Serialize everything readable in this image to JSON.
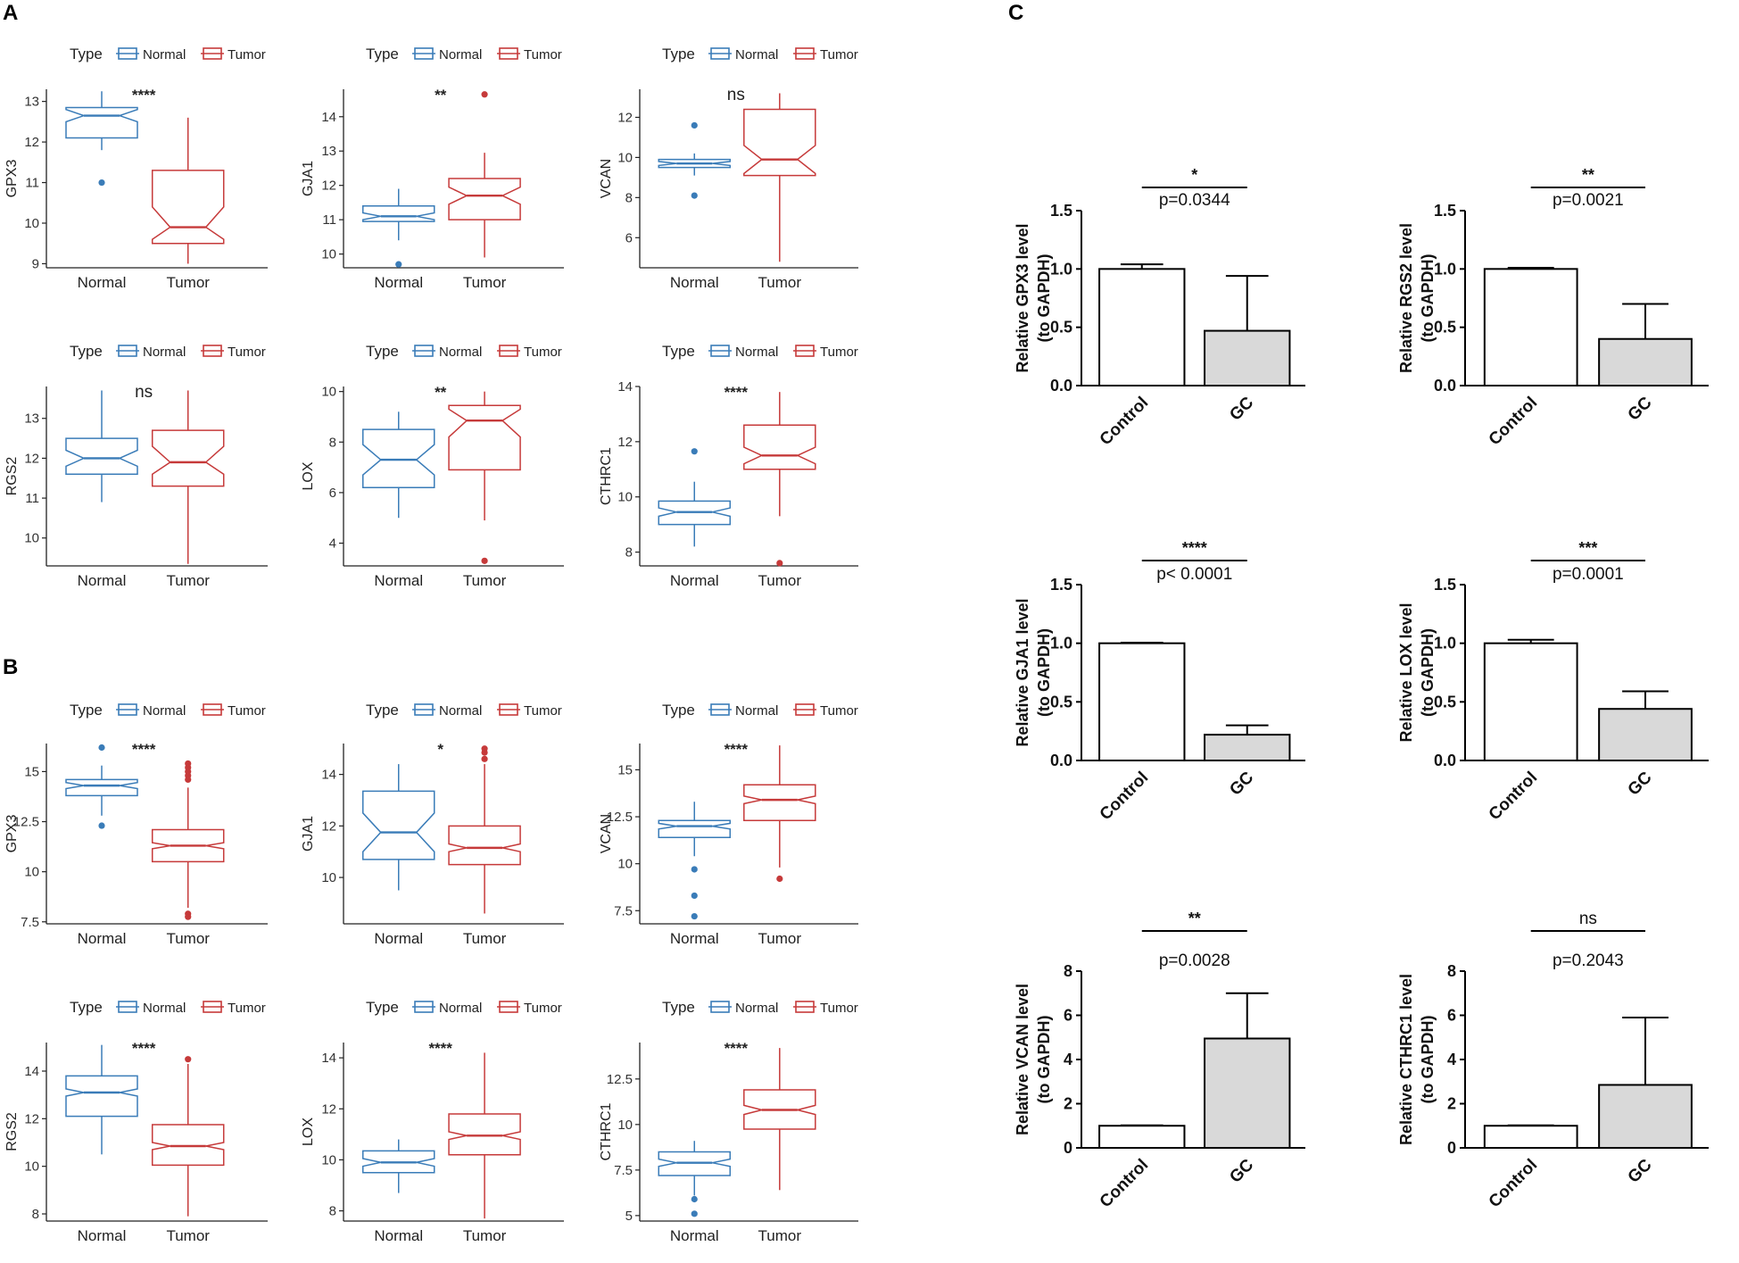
{
  "panel_labels": {
    "A": "A",
    "B": "B",
    "C": "C"
  },
  "legend": {
    "title": "Type",
    "normal": "Normal",
    "tumor": "Tumor"
  },
  "colors": {
    "normal": "#3a7cb8",
    "tumor": "#c63a3a",
    "gc_bar": "#d9d9d9",
    "axis": "#222222"
  },
  "chart_data": [
    {
      "panel": "A",
      "type": "boxplot",
      "gene": "GPX3",
      "ylabel": "GPX3",
      "ylim": [
        8.9,
        13.3
      ],
      "yticks": [
        9,
        10,
        11,
        12,
        13
      ],
      "categories": [
        "Normal",
        "Tumor"
      ],
      "significance": "****",
      "boxes": [
        {
          "group": "Normal",
          "min": 11.8,
          "q1": 12.1,
          "median": 12.65,
          "q3": 12.85,
          "max": 13.25,
          "outliers": [
            11.0
          ],
          "notch": [
            12.5,
            12.8
          ]
        },
        {
          "group": "Tumor",
          "min": 9.0,
          "q1": 9.5,
          "median": 9.9,
          "q3": 11.3,
          "max": 12.6,
          "outliers": [],
          "notch": [
            9.6,
            10.4
          ]
        }
      ]
    },
    {
      "panel": "A",
      "type": "boxplot",
      "gene": "GJA1",
      "ylabel": "GJA1",
      "ylim": [
        9.6,
        14.8
      ],
      "yticks": [
        10,
        11,
        12,
        13,
        14
      ],
      "categories": [
        "Normal",
        "Tumor"
      ],
      "significance": "**",
      "boxes": [
        {
          "group": "Normal",
          "min": 10.4,
          "q1": 10.95,
          "median": 11.1,
          "q3": 11.4,
          "max": 11.9,
          "outliers": [
            9.7
          ],
          "notch": [
            11.0,
            11.2
          ]
        },
        {
          "group": "Tumor",
          "min": 9.9,
          "q1": 11.0,
          "median": 11.7,
          "q3": 12.2,
          "max": 12.95,
          "outliers": [
            14.65
          ],
          "notch": [
            11.45,
            11.95
          ]
        }
      ]
    },
    {
      "panel": "A",
      "type": "boxplot",
      "gene": "VCAN",
      "ylabel": "VCAN",
      "ylim": [
        4.5,
        13.4
      ],
      "yticks": [
        6,
        8,
        10,
        12
      ],
      "categories": [
        "Normal",
        "Tumor"
      ],
      "significance": "ns",
      "boxes": [
        {
          "group": "Normal",
          "min": 9.1,
          "q1": 9.5,
          "median": 9.7,
          "q3": 9.9,
          "max": 10.2,
          "outliers": [
            11.6,
            8.1
          ],
          "notch": [
            9.6,
            9.8
          ]
        },
        {
          "group": "Tumor",
          "min": 4.8,
          "q1": 9.1,
          "median": 9.9,
          "q3": 12.4,
          "max": 13.2,
          "outliers": [],
          "notch": [
            9.2,
            10.6
          ]
        }
      ]
    },
    {
      "panel": "A",
      "type": "boxplot",
      "gene": "RGS2",
      "ylabel": "RGS2",
      "ylim": [
        9.3,
        13.8
      ],
      "yticks": [
        10,
        11,
        12,
        13
      ],
      "categories": [
        "Normal",
        "Tumor"
      ],
      "significance": "ns",
      "boxes": [
        {
          "group": "Normal",
          "min": 10.9,
          "q1": 11.6,
          "median": 12.0,
          "q3": 12.5,
          "max": 13.7,
          "outliers": [],
          "notch": [
            11.8,
            12.2
          ]
        },
        {
          "group": "Tumor",
          "min": 9.35,
          "q1": 11.3,
          "median": 11.9,
          "q3": 12.7,
          "max": 13.7,
          "outliers": [],
          "notch": [
            11.6,
            12.3
          ]
        }
      ]
    },
    {
      "panel": "A",
      "type": "boxplot",
      "gene": "LOX",
      "ylabel": "LOX",
      "ylim": [
        3.1,
        10.2
      ],
      "yticks": [
        4,
        6,
        8,
        10
      ],
      "categories": [
        "Normal",
        "Tumor"
      ],
      "significance": "**",
      "boxes": [
        {
          "group": "Normal",
          "min": 5.0,
          "q1": 6.2,
          "median": 7.3,
          "q3": 8.5,
          "max": 9.2,
          "outliers": [],
          "notch": [
            6.7,
            7.9
          ]
        },
        {
          "group": "Tumor",
          "min": 4.9,
          "q1": 6.9,
          "median": 8.85,
          "q3": 9.45,
          "max": 10.0,
          "outliers": [
            3.3
          ],
          "notch": [
            8.2,
            9.3
          ]
        }
      ]
    },
    {
      "panel": "A",
      "type": "boxplot",
      "gene": "CTHRC1",
      "ylabel": "CTHRC1",
      "ylim": [
        7.5,
        14.0
      ],
      "yticks": [
        8,
        10,
        12,
        14
      ],
      "categories": [
        "Normal",
        "Tumor"
      ],
      "significance": "****",
      "boxes": [
        {
          "group": "Normal",
          "min": 8.2,
          "q1": 9.0,
          "median": 9.45,
          "q3": 9.85,
          "max": 10.55,
          "outliers": [
            11.65
          ],
          "notch": [
            9.3,
            9.6
          ]
        },
        {
          "group": "Tumor",
          "min": 9.3,
          "q1": 11.0,
          "median": 11.5,
          "q3": 12.6,
          "max": 13.8,
          "outliers": [
            7.6
          ],
          "notch": [
            11.2,
            11.8
          ]
        }
      ]
    },
    {
      "panel": "B",
      "type": "boxplot",
      "gene": "GPX3",
      "ylabel": "GPX3",
      "ylim": [
        7.4,
        16.4
      ],
      "yticks": [
        7.5,
        10.0,
        12.5,
        15.0
      ],
      "categories": [
        "Normal",
        "Tumor"
      ],
      "significance": "****",
      "boxes": [
        {
          "group": "Normal",
          "min": 12.8,
          "q1": 13.8,
          "median": 14.3,
          "q3": 14.6,
          "max": 15.3,
          "outliers": [
            16.2,
            12.3
          ],
          "notch": [
            14.15,
            14.45
          ]
        },
        {
          "group": "Tumor",
          "min": 8.2,
          "q1": 10.5,
          "median": 11.3,
          "q3": 12.1,
          "max": 14.2,
          "outliers": [
            14.6,
            14.8,
            15.0,
            15.2,
            15.4,
            7.9,
            7.75
          ],
          "notch": [
            11.15,
            11.45
          ]
        }
      ]
    },
    {
      "panel": "B",
      "type": "boxplot",
      "gene": "GJA1",
      "ylabel": "GJA1",
      "ylim": [
        8.2,
        15.2
      ],
      "yticks": [
        10,
        12,
        14
      ],
      "categories": [
        "Normal",
        "Tumor"
      ],
      "significance": "*",
      "boxes": [
        {
          "group": "Normal",
          "min": 9.5,
          "q1": 10.7,
          "median": 11.75,
          "q3": 13.35,
          "max": 14.4,
          "outliers": [],
          "notch": [
            11.0,
            12.5
          ]
        },
        {
          "group": "Tumor",
          "min": 8.6,
          "q1": 10.5,
          "median": 11.15,
          "q3": 12.0,
          "max": 14.4,
          "outliers": [
            14.6,
            14.85,
            15.0
          ],
          "notch": [
            11.0,
            11.3
          ]
        }
      ]
    },
    {
      "panel": "B",
      "type": "boxplot",
      "gene": "VCAN",
      "ylabel": "VCAN",
      "ylim": [
        6.8,
        16.4
      ],
      "yticks": [
        7.5,
        10.0,
        12.5,
        15.0
      ],
      "categories": [
        "Normal",
        "Tumor"
      ],
      "significance": "****",
      "boxes": [
        {
          "group": "Normal",
          "min": 10.4,
          "q1": 11.4,
          "median": 12.0,
          "q3": 12.3,
          "max": 13.3,
          "outliers": [
            9.7,
            8.3,
            7.2
          ],
          "notch": [
            11.85,
            12.15
          ]
        },
        {
          "group": "Tumor",
          "min": 9.8,
          "q1": 12.3,
          "median": 13.4,
          "q3": 14.2,
          "max": 16.3,
          "outliers": [
            9.2
          ],
          "notch": [
            13.2,
            13.6
          ]
        }
      ]
    },
    {
      "panel": "B",
      "type": "boxplot",
      "gene": "RGS2",
      "ylabel": "RGS2",
      "ylim": [
        7.7,
        15.2
      ],
      "yticks": [
        8,
        10,
        12,
        14
      ],
      "categories": [
        "Normal",
        "Tumor"
      ],
      "significance": "****",
      "boxes": [
        {
          "group": "Normal",
          "min": 10.5,
          "q1": 12.1,
          "median": 13.1,
          "q3": 13.8,
          "max": 15.1,
          "outliers": [],
          "notch": [
            12.95,
            13.25
          ]
        },
        {
          "group": "Tumor",
          "min": 7.9,
          "q1": 10.05,
          "median": 10.85,
          "q3": 11.75,
          "max": 14.3,
          "outliers": [
            14.5
          ],
          "notch": [
            10.7,
            11.0
          ]
        }
      ]
    },
    {
      "panel": "B",
      "type": "boxplot",
      "gene": "LOX",
      "ylabel": "LOX",
      "ylim": [
        7.6,
        14.6
      ],
      "yticks": [
        8,
        10,
        12,
        14
      ],
      "categories": [
        "Normal",
        "Tumor"
      ],
      "significance": "****",
      "boxes": [
        {
          "group": "Normal",
          "min": 8.7,
          "q1": 9.5,
          "median": 9.9,
          "q3": 10.35,
          "max": 10.8,
          "outliers": [],
          "notch": [
            9.75,
            10.05
          ]
        },
        {
          "group": "Tumor",
          "min": 7.7,
          "q1": 10.2,
          "median": 10.95,
          "q3": 11.8,
          "max": 14.2,
          "outliers": [],
          "notch": [
            10.8,
            11.1
          ]
        }
      ]
    },
    {
      "panel": "B",
      "type": "boxplot",
      "gene": "CTHRC1",
      "ylabel": "CTHRC1",
      "ylim": [
        4.7,
        14.5
      ],
      "yticks": [
        5.0,
        7.5,
        10.0,
        12.5
      ],
      "categories": [
        "Normal",
        "Tumor"
      ],
      "significance": "****",
      "boxes": [
        {
          "group": "Normal",
          "min": 6.1,
          "q1": 7.2,
          "median": 7.9,
          "q3": 8.5,
          "max": 9.1,
          "outliers": [
            5.9,
            5.1
          ],
          "notch": [
            7.7,
            8.1
          ]
        },
        {
          "group": "Tumor",
          "min": 6.4,
          "q1": 9.75,
          "median": 10.8,
          "q3": 11.9,
          "max": 14.2,
          "outliers": [],
          "notch": [
            10.55,
            11.05
          ]
        }
      ]
    },
    {
      "panel": "C",
      "type": "bar",
      "gene": "GPX3",
      "ylabel": [
        "Relative GPX3 level",
        "(to GAPDH)"
      ],
      "categories": [
        "Control",
        "GC"
      ],
      "values": [
        1.0,
        0.47
      ],
      "errors": [
        0.04,
        0.47
      ],
      "ylim": [
        0,
        1.5
      ],
      "yticks": [
        "0.0",
        "0.5",
        "1.0",
        "1.5"
      ],
      "significance": "*",
      "pvalue": "p=0.0344"
    },
    {
      "panel": "C",
      "type": "bar",
      "gene": "RGS2",
      "ylabel": [
        "Relative RGS2 level",
        "(to GAPDH)"
      ],
      "categories": [
        "Control",
        "GC"
      ],
      "values": [
        1.0,
        0.4
      ],
      "errors": [
        0.01,
        0.3
      ],
      "ylim": [
        0,
        1.5
      ],
      "yticks": [
        "0.0",
        "0.5",
        "1.0",
        "1.5"
      ],
      "significance": "**",
      "pvalue": "p=0.0021"
    },
    {
      "panel": "C",
      "type": "bar",
      "gene": "GJA1",
      "ylabel": [
        "Relative GJA1 level",
        "(to GAPDH)"
      ],
      "categories": [
        "Control",
        "GC"
      ],
      "values": [
        1.0,
        0.22
      ],
      "errors": [
        0.005,
        0.08
      ],
      "ylim": [
        0,
        1.5
      ],
      "yticks": [
        "0.0",
        "0.5",
        "1.0",
        "1.5"
      ],
      "significance": "****",
      "pvalue": "p< 0.0001"
    },
    {
      "panel": "C",
      "type": "bar",
      "gene": "LOX",
      "ylabel": [
        "Relative LOX level",
        "(to GAPDH)"
      ],
      "categories": [
        "Control",
        "GC"
      ],
      "values": [
        1.0,
        0.44
      ],
      "errors": [
        0.03,
        0.15
      ],
      "ylim": [
        0,
        1.5
      ],
      "yticks": [
        "0.0",
        "0.5",
        "1.0",
        "1.5"
      ],
      "significance": "***",
      "pvalue": "p=0.0001"
    },
    {
      "panel": "C",
      "type": "bar",
      "gene": "VCAN",
      "ylabel": [
        "Relative VCAN level",
        "(to GAPDH)"
      ],
      "categories": [
        "Control",
        "GC"
      ],
      "values": [
        1.0,
        4.95
      ],
      "errors": [
        0.02,
        2.05
      ],
      "ylim": [
        0,
        8
      ],
      "yticks": [
        "0",
        "2",
        "4",
        "6",
        "8"
      ],
      "significance": "**",
      "pvalue": "p=0.0028"
    },
    {
      "panel": "C",
      "type": "bar",
      "gene": "CTHRC1",
      "ylabel": [
        "Relative CTHRC1 level",
        "(to GAPDH)"
      ],
      "categories": [
        "Control",
        "GC"
      ],
      "values": [
        1.0,
        2.85
      ],
      "errors": [
        0.02,
        3.05
      ],
      "ylim": [
        0,
        8
      ],
      "yticks": [
        "0",
        "2",
        "4",
        "6",
        "8"
      ],
      "significance": "ns",
      "pvalue": "p=0.2043"
    }
  ]
}
